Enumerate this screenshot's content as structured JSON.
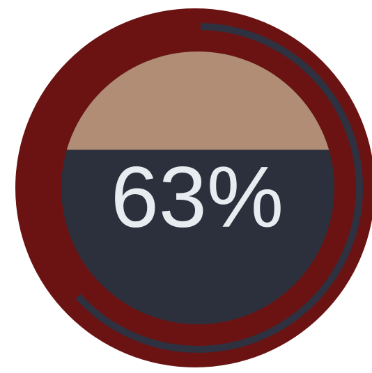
{
  "gauge": {
    "progress": 0.63,
    "fill_level": 0.36,
    "label": "63%",
    "colors": {
      "background": "#ffffff",
      "outer_ring": "#6b1313",
      "arc": "#2d3140",
      "inner_top": "#b08d74",
      "inner_bottom": "#2c303d",
      "text": "#e8ebf0"
    }
  }
}
